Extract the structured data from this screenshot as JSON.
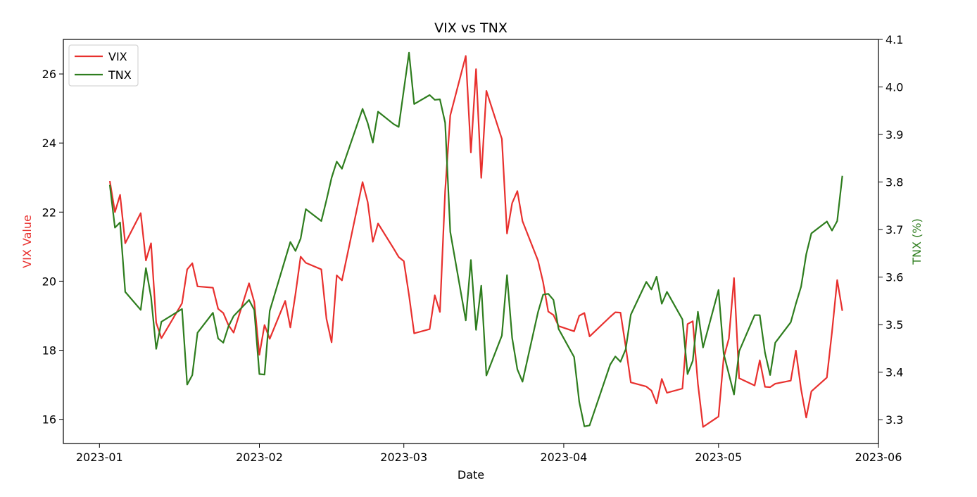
{
  "chart_data": {
    "type": "line",
    "title": "VIX vs TNX",
    "xlabel": "Date",
    "ylabel_left": "VIX Value",
    "ylabel_right": "TNX (%)",
    "x_ticks": [
      "2023-01",
      "2023-02",
      "2023-03",
      "2023-04",
      "2023-05",
      "2023-06"
    ],
    "xlim": [
      "2022-12-25",
      "2023-06-01"
    ],
    "ylim_left": [
      15.3,
      27.0
    ],
    "ylim_right": [
      3.25,
      4.1
    ],
    "yticks_left": [
      16,
      18,
      20,
      22,
      24,
      26
    ],
    "yticks_right": [
      "3.3",
      "3.4",
      "3.5",
      "3.6",
      "3.7",
      "3.8",
      "3.9",
      "4.0",
      "4.1"
    ],
    "legend_position": "upper-left",
    "grid": false,
    "colors": {
      "vix": "#e8302e",
      "tnx": "#2e7d1e"
    },
    "series": [
      {
        "name": "VIX",
        "axis": "left",
        "points": [
          [
            "2023-01-03",
            22.9
          ],
          [
            "2023-01-04",
            22.0
          ],
          [
            "2023-01-05",
            22.5
          ],
          [
            "2023-01-06",
            21.1
          ],
          [
            "2023-01-09",
            21.97
          ],
          [
            "2023-01-10",
            20.6
          ],
          [
            "2023-01-11",
            21.1
          ],
          [
            "2023-01-12",
            18.8
          ],
          [
            "2023-01-13",
            18.35
          ],
          [
            "2023-01-17",
            19.36
          ],
          [
            "2023-01-18",
            20.34
          ],
          [
            "2023-01-19",
            20.52
          ],
          [
            "2023-01-20",
            19.85
          ],
          [
            "2023-01-23",
            19.81
          ],
          [
            "2023-01-24",
            19.2
          ],
          [
            "2023-01-25",
            19.08
          ],
          [
            "2023-01-26",
            18.73
          ],
          [
            "2023-01-27",
            18.51
          ],
          [
            "2023-01-30",
            19.94
          ],
          [
            "2023-01-31",
            19.4
          ],
          [
            "2023-02-01",
            17.87
          ],
          [
            "2023-02-02",
            18.73
          ],
          [
            "2023-02-03",
            18.33
          ],
          [
            "2023-02-06",
            19.43
          ],
          [
            "2023-02-07",
            18.66
          ],
          [
            "2023-02-08",
            19.63
          ],
          [
            "2023-02-09",
            20.71
          ],
          [
            "2023-02-10",
            20.53
          ],
          [
            "2023-02-13",
            20.34
          ],
          [
            "2023-02-14",
            18.91
          ],
          [
            "2023-02-15",
            18.23
          ],
          [
            "2023-02-16",
            20.17
          ],
          [
            "2023-02-17",
            20.02
          ],
          [
            "2023-02-21",
            22.87
          ],
          [
            "2023-02-22",
            22.29
          ],
          [
            "2023-02-23",
            21.14
          ],
          [
            "2023-02-24",
            21.67
          ],
          [
            "2023-02-27",
            20.95
          ],
          [
            "2023-02-28",
            20.7
          ],
          [
            "2023-03-01",
            20.58
          ],
          [
            "2023-03-02",
            19.59
          ],
          [
            "2023-03-03",
            18.49
          ],
          [
            "2023-03-06",
            18.61
          ],
          [
            "2023-03-07",
            19.59
          ],
          [
            "2023-03-08",
            19.11
          ],
          [
            "2023-03-09",
            22.61
          ],
          [
            "2023-03-10",
            24.8
          ],
          [
            "2023-03-13",
            26.52
          ],
          [
            "2023-03-14",
            23.73
          ],
          [
            "2023-03-15",
            26.14
          ],
          [
            "2023-03-16",
            22.99
          ],
          [
            "2023-03-17",
            25.51
          ],
          [
            "2023-03-20",
            24.12
          ],
          [
            "2023-03-21",
            21.38
          ],
          [
            "2023-03-22",
            22.26
          ],
          [
            "2023-03-23",
            22.61
          ],
          [
            "2023-03-24",
            21.74
          ],
          [
            "2023-03-27",
            20.6
          ],
          [
            "2023-03-28",
            19.97
          ],
          [
            "2023-03-29",
            19.12
          ],
          [
            "2023-03-30",
            19.02
          ],
          [
            "2023-03-31",
            18.7
          ],
          [
            "2023-04-03",
            18.55
          ],
          [
            "2023-04-04",
            19.0
          ],
          [
            "2023-04-05",
            19.08
          ],
          [
            "2023-04-06",
            18.4
          ],
          [
            "2023-04-10",
            18.97
          ],
          [
            "2023-04-11",
            19.1
          ],
          [
            "2023-04-12",
            19.09
          ],
          [
            "2023-04-13",
            18.11
          ],
          [
            "2023-04-14",
            17.07
          ],
          [
            "2023-04-17",
            16.95
          ],
          [
            "2023-04-18",
            16.83
          ],
          [
            "2023-04-19",
            16.46
          ],
          [
            "2023-04-20",
            17.17
          ],
          [
            "2023-04-21",
            16.77
          ],
          [
            "2023-04-24",
            16.89
          ],
          [
            "2023-04-25",
            18.76
          ],
          [
            "2023-04-26",
            18.84
          ],
          [
            "2023-04-27",
            17.03
          ],
          [
            "2023-04-28",
            15.78
          ],
          [
            "2023-05-01",
            16.08
          ],
          [
            "2023-05-02",
            17.78
          ],
          [
            "2023-05-03",
            18.34
          ],
          [
            "2023-05-04",
            20.09
          ],
          [
            "2023-05-05",
            17.19
          ],
          [
            "2023-05-08",
            16.98
          ],
          [
            "2023-05-09",
            17.71
          ],
          [
            "2023-05-10",
            16.94
          ],
          [
            "2023-05-11",
            16.93
          ],
          [
            "2023-05-12",
            17.03
          ],
          [
            "2023-05-15",
            17.12
          ],
          [
            "2023-05-16",
            17.99
          ],
          [
            "2023-05-17",
            16.87
          ],
          [
            "2023-05-18",
            16.05
          ],
          [
            "2023-05-19",
            16.81
          ],
          [
            "2023-05-22",
            17.21
          ],
          [
            "2023-05-23",
            18.53
          ],
          [
            "2023-05-24",
            20.03
          ],
          [
            "2023-05-25",
            19.14
          ]
        ]
      },
      {
        "name": "TNX",
        "axis": "right",
        "points": [
          [
            "2023-01-03",
            3.794
          ],
          [
            "2023-01-04",
            3.704
          ],
          [
            "2023-01-05",
            3.715
          ],
          [
            "2023-01-06",
            3.569
          ],
          [
            "2023-01-09",
            3.531
          ],
          [
            "2023-01-10",
            3.619
          ],
          [
            "2023-01-11",
            3.558
          ],
          [
            "2023-01-12",
            3.449
          ],
          [
            "2023-01-13",
            3.506
          ],
          [
            "2023-01-17",
            3.533
          ],
          [
            "2023-01-18",
            3.374
          ],
          [
            "2023-01-19",
            3.394
          ],
          [
            "2023-01-20",
            3.483
          ],
          [
            "2023-01-23",
            3.525
          ],
          [
            "2023-01-24",
            3.471
          ],
          [
            "2023-01-25",
            3.462
          ],
          [
            "2023-01-26",
            3.496
          ],
          [
            "2023-01-27",
            3.518
          ],
          [
            "2023-01-30",
            3.552
          ],
          [
            "2023-01-31",
            3.531
          ],
          [
            "2023-02-01",
            3.396
          ],
          [
            "2023-02-02",
            3.395
          ],
          [
            "2023-02-03",
            3.529
          ],
          [
            "2023-02-06",
            3.638
          ],
          [
            "2023-02-07",
            3.674
          ],
          [
            "2023-02-08",
            3.655
          ],
          [
            "2023-02-09",
            3.681
          ],
          [
            "2023-02-10",
            3.743
          ],
          [
            "2023-02-13",
            3.718
          ],
          [
            "2023-02-14",
            3.762
          ],
          [
            "2023-02-15",
            3.809
          ],
          [
            "2023-02-16",
            3.843
          ],
          [
            "2023-02-17",
            3.828
          ],
          [
            "2023-02-21",
            3.954
          ],
          [
            "2023-02-22",
            3.924
          ],
          [
            "2023-02-23",
            3.883
          ],
          [
            "2023-02-24",
            3.948
          ],
          [
            "2023-02-27",
            3.922
          ],
          [
            "2023-02-28",
            3.916
          ],
          [
            "2023-03-01",
            3.994
          ],
          [
            "2023-03-02",
            4.072
          ],
          [
            "2023-03-03",
            3.964
          ],
          [
            "2023-03-06",
            3.983
          ],
          [
            "2023-03-07",
            3.973
          ],
          [
            "2023-03-08",
            3.974
          ],
          [
            "2023-03-09",
            3.925
          ],
          [
            "2023-03-10",
            3.695
          ],
          [
            "2023-03-13",
            3.509
          ],
          [
            "2023-03-14",
            3.636
          ],
          [
            "2023-03-15",
            3.489
          ],
          [
            "2023-03-16",
            3.582
          ],
          [
            "2023-03-17",
            3.393
          ],
          [
            "2023-03-20",
            3.477
          ],
          [
            "2023-03-21",
            3.604
          ],
          [
            "2023-03-22",
            3.472
          ],
          [
            "2023-03-23",
            3.406
          ],
          [
            "2023-03-24",
            3.38
          ],
          [
            "2023-03-27",
            3.526
          ],
          [
            "2023-03-28",
            3.563
          ],
          [
            "2023-03-29",
            3.565
          ],
          [
            "2023-03-30",
            3.552
          ],
          [
            "2023-03-31",
            3.491
          ],
          [
            "2023-04-03",
            3.432
          ],
          [
            "2023-04-04",
            3.338
          ],
          [
            "2023-04-05",
            3.286
          ],
          [
            "2023-04-06",
            3.288
          ],
          [
            "2023-04-10",
            3.416
          ],
          [
            "2023-04-11",
            3.433
          ],
          [
            "2023-04-12",
            3.422
          ],
          [
            "2023-04-13",
            3.448
          ],
          [
            "2023-04-14",
            3.521
          ],
          [
            "2023-04-17",
            3.59
          ],
          [
            "2023-04-18",
            3.574
          ],
          [
            "2023-04-19",
            3.601
          ],
          [
            "2023-04-20",
            3.544
          ],
          [
            "2023-04-21",
            3.569
          ],
          [
            "2023-04-24",
            3.511
          ],
          [
            "2023-04-25",
            3.396
          ],
          [
            "2023-04-26",
            3.424
          ],
          [
            "2023-04-27",
            3.527
          ],
          [
            "2023-04-28",
            3.452
          ],
          [
            "2023-05-01",
            3.573
          ],
          [
            "2023-05-02",
            3.439
          ],
          [
            "2023-05-03",
            3.396
          ],
          [
            "2023-05-04",
            3.353
          ],
          [
            "2023-05-05",
            3.444
          ],
          [
            "2023-05-08",
            3.52
          ],
          [
            "2023-05-09",
            3.52
          ],
          [
            "2023-05-10",
            3.441
          ],
          [
            "2023-05-11",
            3.394
          ],
          [
            "2023-05-12",
            3.462
          ],
          [
            "2023-05-15",
            3.505
          ],
          [
            "2023-05-16",
            3.544
          ],
          [
            "2023-05-17",
            3.58
          ],
          [
            "2023-05-18",
            3.648
          ],
          [
            "2023-05-19",
            3.692
          ],
          [
            "2023-05-22",
            3.717
          ],
          [
            "2023-05-23",
            3.698
          ],
          [
            "2023-05-24",
            3.718
          ],
          [
            "2023-05-25",
            3.813
          ]
        ]
      }
    ]
  }
}
